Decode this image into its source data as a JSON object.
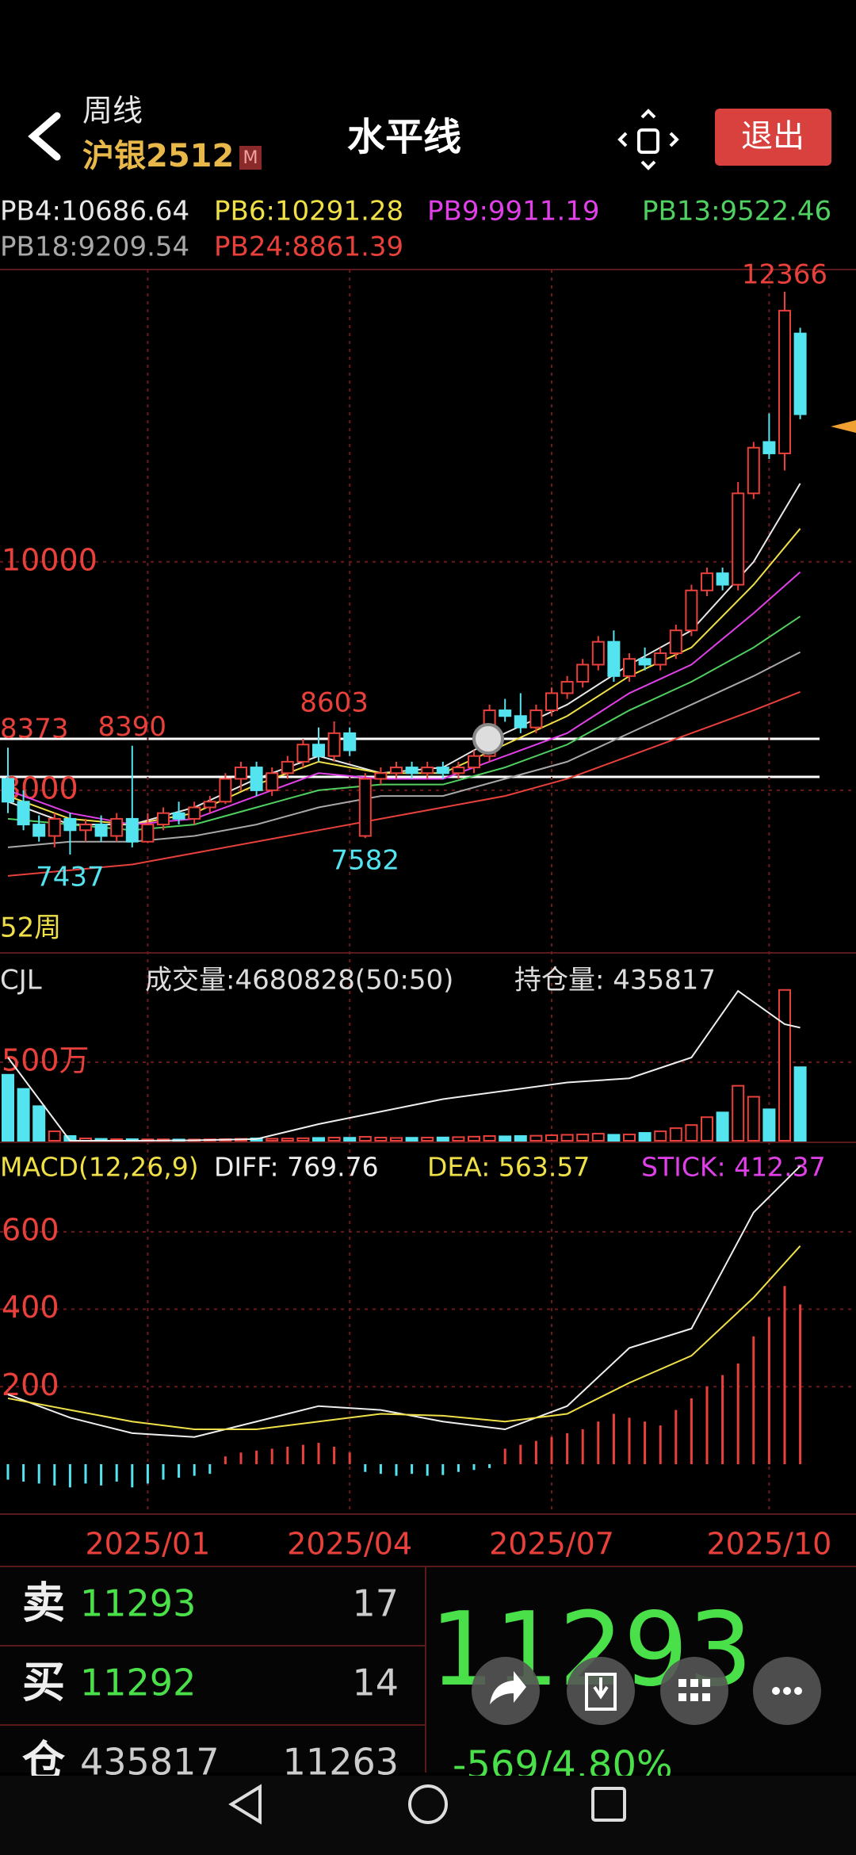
{
  "header": {
    "period": "周线",
    "symbol": "沪银2512",
    "badge": "M",
    "title": "水平线",
    "exit": "退出"
  },
  "price_chart": {
    "type": "candlestick",
    "period_label": "52周",
    "categories": [
      null,
      null,
      null,
      null,
      null,
      null,
      null,
      null,
      null,
      "2025/01",
      null,
      null,
      null,
      null,
      null,
      null,
      null,
      null,
      null,
      null,
      null,
      null,
      "2025/04",
      null,
      null,
      null,
      null,
      null,
      null,
      null,
      null,
      null,
      null,
      null,
      null,
      "2025/07",
      null,
      null,
      null,
      null,
      null,
      null,
      null,
      null,
      null,
      null,
      null,
      null,
      null,
      "2025/10",
      null,
      null
    ],
    "open": [
      8100,
      7900,
      7700,
      7600,
      7750,
      7650,
      7700,
      7600,
      7750,
      7550,
      7700,
      7800,
      7750,
      7850,
      7900,
      8100,
      8200,
      8000,
      8150,
      8250,
      8400,
      8300,
      8500,
      7600,
      8100,
      8150,
      8200,
      8150,
      8200,
      8150,
      8200,
      8300,
      8700,
      8650,
      8550,
      8700,
      8850,
      8950,
      9100,
      9300,
      9000,
      9150,
      9100,
      9200,
      9400,
      9750,
      9900,
      9800,
      10600,
      11050,
      10950,
      12000
    ],
    "high": [
      8373,
      8000,
      7780,
      7800,
      7800,
      7750,
      7780,
      7800,
      8390,
      7800,
      7850,
      7900,
      7900,
      7950,
      8150,
      8250,
      8250,
      8200,
      8300,
      8450,
      8550,
      8603,
      8550,
      8150,
      8200,
      8250,
      8250,
      8250,
      8250,
      8250,
      8350,
      8750,
      8800,
      8850,
      8750,
      8900,
      9000,
      9150,
      9350,
      9400,
      9200,
      9250,
      9250,
      9450,
      9800,
      9950,
      9950,
      10700,
      11050,
      11300,
      12366,
      12050
    ],
    "low": [
      7800,
      7650,
      7550,
      7500,
      7437,
      7550,
      7550,
      7550,
      7500,
      7540,
      7650,
      7700,
      7700,
      7800,
      7880,
      8000,
      7950,
      7950,
      8100,
      8200,
      8250,
      8250,
      8300,
      7582,
      8050,
      8100,
      8100,
      8100,
      8100,
      8100,
      8150,
      8250,
      8600,
      8500,
      8500,
      8650,
      8800,
      8900,
      9050,
      8950,
      8950,
      9050,
      9050,
      9150,
      9350,
      9700,
      9750,
      9750,
      10550,
      10900,
      10800,
      11250
    ],
    "close": [
      7900,
      7700,
      7600,
      7750,
      7650,
      7700,
      7600,
      7750,
      7550,
      7700,
      7800,
      7750,
      7850,
      7900,
      8100,
      8200,
      8000,
      8150,
      8250,
      8400,
      8300,
      8500,
      8350,
      8100,
      8150,
      8200,
      8150,
      8200,
      8150,
      8200,
      8300,
      8700,
      8650,
      8550,
      8700,
      8850,
      8950,
      9100,
      9300,
      9000,
      9150,
      9100,
      9200,
      9400,
      9750,
      9900,
      9800,
      10600,
      11000,
      10950,
      12200,
      11293
    ],
    "up_color": "#e8403a",
    "down_color": "#54e4f0",
    "ylim": [
      6590,
      12560
    ],
    "yticks": [
      10000,
      8000
    ],
    "ma_x": [
      0,
      4,
      8,
      12,
      16,
      20,
      24,
      28,
      32,
      36,
      40,
      44,
      48,
      51
    ],
    "series": [
      {
        "name": "PB4:10686.64",
        "color": "#e8e8e8",
        "values": [
          7900,
          7700,
          7700,
          7850,
          8100,
          8300,
          8150,
          8200,
          8500,
          8750,
          9100,
          9400,
          10000,
          10686.64
        ]
      },
      {
        "name": "PB6:10291.28",
        "color": "#f0e048",
        "values": [
          7950,
          7750,
          7700,
          7800,
          8050,
          8250,
          8150,
          8150,
          8400,
          8650,
          9000,
          9250,
          9800,
          10291.28
        ]
      },
      {
        "name": "PB9:9911.19",
        "color": "#e040e8",
        "values": [
          8000,
          7800,
          7700,
          7750,
          7950,
          8150,
          8100,
          8100,
          8300,
          8500,
          8850,
          9100,
          9550,
          9911.19
        ]
      },
      {
        "name": "PB13:9522.46",
        "color": "#50d060",
        "values": [
          7750,
          7700,
          7650,
          7700,
          7850,
          8000,
          8050,
          8050,
          8200,
          8400,
          8700,
          8950,
          9250,
          9522.46
        ]
      },
      {
        "name": "PB18:9209.54",
        "color": "#a8a8a8",
        "values": [
          7500,
          7550,
          7550,
          7600,
          7700,
          7850,
          7950,
          7950,
          8100,
          8250,
          8500,
          8750,
          9000,
          9209.54
        ]
      },
      {
        "name": "PB24:8861.39",
        "color": "#e8403a",
        "values": [
          7250,
          7300,
          7350,
          7450,
          7550,
          7650,
          7750,
          7850,
          7950,
          8100,
          8300,
          8500,
          8700,
          8861.39
        ]
      }
    ]
  },
  "volume": {
    "title": "CJL",
    "volume_text": "成交量:4680828(50:50)",
    "oi_text": "持仓量: 435817",
    "values": [
      4200000,
      3300000,
      2200000,
      600000,
      300000,
      150000,
      120000,
      100000,
      100000,
      90000,
      90000,
      80000,
      80000,
      90000,
      100000,
      120000,
      150000,
      130000,
      140000,
      160000,
      180000,
      200000,
      190000,
      250000,
      200000,
      180000,
      190000,
      200000,
      210000,
      230000,
      260000,
      300000,
      280000,
      300000,
      320000,
      350000,
      380000,
      400000,
      450000,
      380000,
      400000,
      500000,
      600000,
      800000,
      1000000,
      1500000,
      1800000,
      3500000,
      2800000,
      2000000,
      9600000,
      4680828
    ],
    "ylim": [
      0,
      10900000
    ],
    "yticks": [
      {
        "value": 5000000,
        "label": "500万"
      }
    ],
    "oi_x": [
      0,
      4,
      8,
      12,
      16,
      20,
      24,
      28,
      32,
      36,
      40,
      44,
      47,
      50,
      51
    ],
    "open_interest": [
      400000,
      300000,
      300000,
      300500,
      302000,
      320000,
      335000,
      350000,
      360000,
      370000,
      375000,
      400000,
      480000,
      440000,
      435817
    ]
  },
  "macd": {
    "title": "MACD(12,26,9)",
    "diff_text": "DIFF: 769.76",
    "dea_text": "DEA: 563.57",
    "stick_text": "STICK: 412.37",
    "x": [
      0,
      4,
      8,
      12,
      16,
      20,
      24,
      28,
      32,
      36,
      40,
      44,
      48,
      51
    ],
    "diff": [
      180,
      120,
      80,
      70,
      110,
      150,
      140,
      110,
      90,
      150,
      300,
      350,
      650,
      769.76
    ],
    "dea": [
      170,
      140,
      110,
      90,
      90,
      110,
      130,
      125,
      110,
      130,
      210,
      280,
      430,
      563.57
    ],
    "stick": [
      -40,
      -45,
      -50,
      -55,
      -60,
      -50,
      -55,
      -45,
      -60,
      -50,
      -40,
      -35,
      -30,
      -25,
      20,
      30,
      35,
      40,
      45,
      50,
      55,
      45,
      30,
      -20,
      -25,
      -30,
      -25,
      -30,
      -28,
      -20,
      -15,
      -10,
      40,
      50,
      60,
      70,
      80,
      90,
      110,
      130,
      120,
      110,
      100,
      140,
      170,
      200,
      230,
      260,
      330,
      380,
      460,
      412.37
    ],
    "ylim": [
      -129,
      831
    ],
    "yticks": [
      600,
      400,
      200
    ]
  },
  "quote": {
    "rows": [
      {
        "side": "卖",
        "price": 11293,
        "qty": 17
      },
      {
        "side": "买",
        "price": 11292,
        "qty": 14
      },
      {
        "side": "仓",
        "price": 435817,
        "qty": 11263
      }
    ],
    "last": 11293,
    "change": "-569/4.80%"
  }
}
